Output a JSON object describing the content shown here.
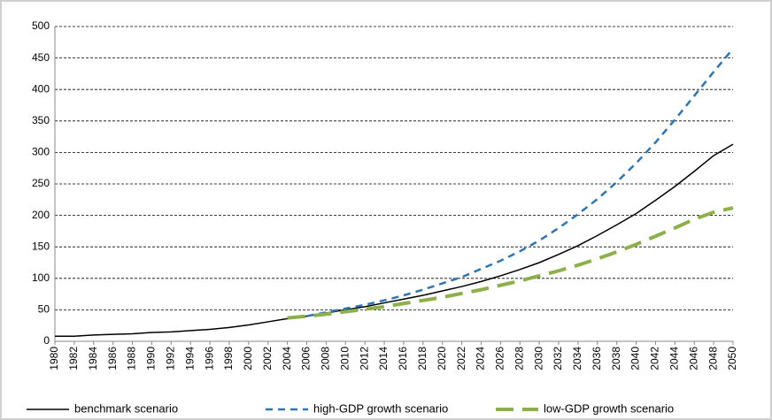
{
  "chart_data": {
    "type": "line",
    "categories": [
      "1980",
      "1982",
      "1984",
      "1986",
      "1988",
      "1990",
      "1992",
      "1994",
      "1996",
      "1998",
      "2000",
      "2002",
      "2004",
      "2006",
      "2008",
      "2010",
      "2012",
      "2014",
      "2016",
      "2018",
      "2020",
      "2022",
      "2024",
      "2026",
      "2028",
      "2030",
      "2032",
      "2034",
      "2036",
      "2038",
      "2040",
      "2042",
      "2044",
      "2046",
      "2048",
      "2050"
    ],
    "series": [
      {
        "name": "benchmark scenario",
        "color": "#000000",
        "dash": "solid",
        "values": [
          8,
          8,
          10,
          11,
          12,
          14,
          15,
          17,
          19,
          22,
          26,
          31,
          36,
          40,
          45,
          50,
          55,
          61,
          67,
          73,
          80,
          87,
          95,
          104,
          114,
          125,
          138,
          152,
          168,
          185,
          203,
          224,
          246,
          270,
          295,
          313
        ]
      },
      {
        "name": "high-GDP growth scenario",
        "color": "#2e75b6",
        "dash": "dashed",
        "values": [
          null,
          null,
          null,
          null,
          null,
          null,
          null,
          null,
          null,
          null,
          null,
          null,
          null,
          40,
          46,
          52,
          58,
          65,
          73,
          82,
          92,
          102,
          115,
          128,
          143,
          160,
          180,
          202,
          226,
          253,
          283,
          316,
          352,
          390,
          428,
          465
        ]
      },
      {
        "name": "low-GDP growth scenario",
        "color": "#8db04a",
        "dash": "long-dash",
        "values": [
          null,
          null,
          null,
          null,
          null,
          null,
          null,
          null,
          null,
          null,
          null,
          null,
          37,
          40,
          43,
          47,
          51,
          55,
          60,
          65,
          70,
          76,
          82,
          89,
          96,
          104,
          112,
          121,
          131,
          142,
          154,
          167,
          180,
          194,
          205,
          212
        ]
      }
    ],
    "ylim": [
      0,
      500
    ],
    "yticks": [
      0,
      50,
      100,
      150,
      200,
      250,
      300,
      350,
      400,
      450,
      500
    ],
    "grid": true,
    "legend": "bottom"
  }
}
